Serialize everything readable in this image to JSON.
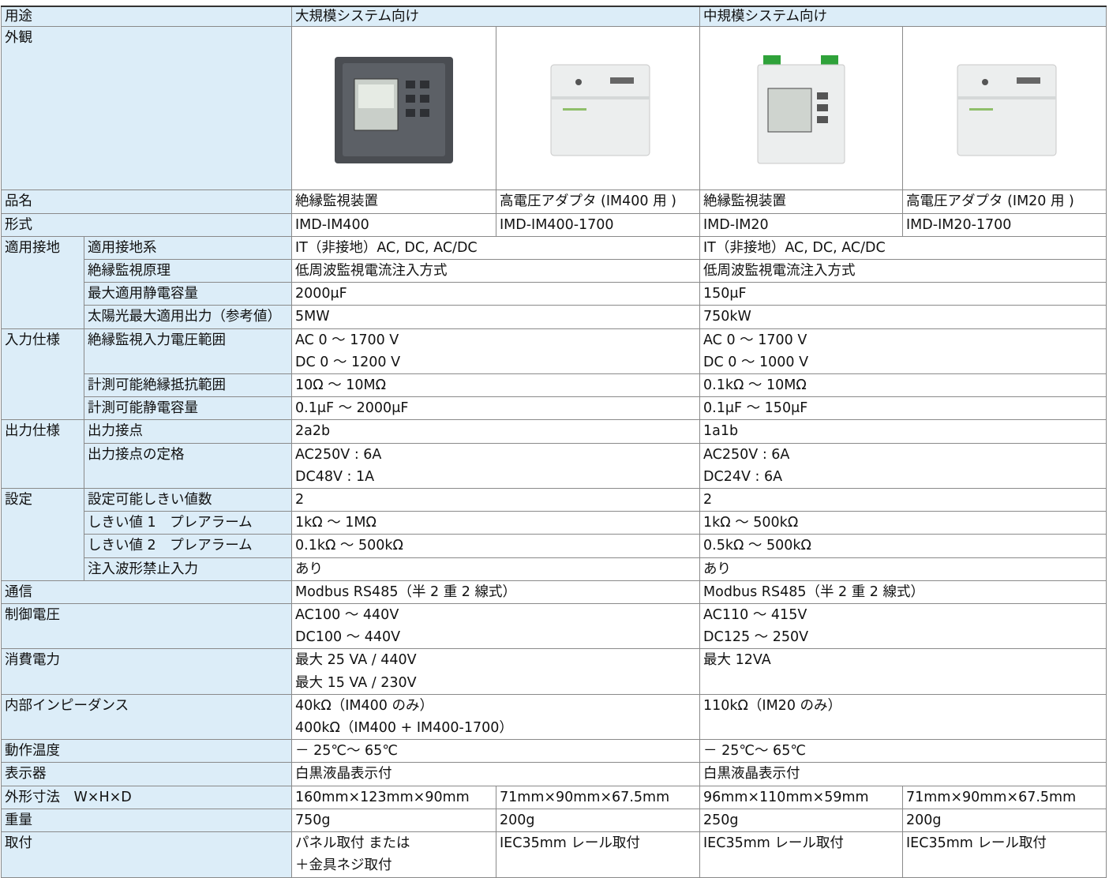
{
  "table": {
    "header": [
      "用途",
      "大規模システム向け",
      "中規模システム向け"
    ],
    "appearance_label": "外観",
    "rows": [
      [
        "品名",
        "絶縁監視装置",
        "高電圧アダプタ (IM400 用 )",
        "絶縁監視装置",
        "高電圧アダプタ (IM20 用 )"
      ],
      [
        "形式",
        "IMD-IM400",
        " IMD-IM400-1700",
        "IMD-IM20",
        "IMD-IM20-1700"
      ],
      [
        "適用接地",
        "適用接地系",
        "IT（非接地）AC, DC, AC/DC",
        "IT（非接地）AC, DC, AC/DC"
      ],
      [
        "絶縁監視原理",
        "低周波監視電流注入方式",
        "低周波監視電流注入方式"
      ],
      [
        "最大適用静電容量",
        "2000μF",
        "150μF"
      ],
      [
        "太陽光最大適用出力（参考値）",
        "5MW",
        "750kW"
      ],
      [
        "入力仕様",
        "絶縁監視入力電圧範囲",
        "AC 0 ～ 1700 V\nDC 0 ～ 1200 V",
        "AC 0 ～ 1700 V\nDC 0 ～ 1000 V"
      ],
      [
        "計測可能絶縁抵抗範囲",
        "10Ω ～ 10MΩ",
        "0.1kΩ ～ 10MΩ"
      ],
      [
        "計測可能静電容量",
        "0.1μF ～ 2000μF",
        "0.1μF ～ 150μF"
      ],
      [
        "出力仕様",
        "出力接点",
        "2a2b",
        "1a1b"
      ],
      [
        "出力接点の定格",
        "AC250V : 6A\nDC48V : 1A",
        "AC250V : 6A\nDC24V : 6A"
      ],
      [
        "設定",
        "設定可能しきい値数",
        "2",
        "2"
      ],
      [
        "しきい値 1　プレアラーム",
        "1kΩ ～ 1MΩ",
        "1kΩ ～ 500kΩ"
      ],
      [
        "しきい値 2　プレアラーム",
        "0.1kΩ ～ 500kΩ",
        "0.5kΩ ～ 500kΩ"
      ],
      [
        "注入波形禁止入力",
        "あり",
        "あり"
      ],
      [
        "通信",
        "Modbus RS485（半 2 重 2 線式）",
        "Modbus RS485（半 2 重 2 線式）"
      ],
      [
        "制御電圧",
        "AC100 ～ 440V\nDC100 ～ 440V",
        "AC110 ～ 415V\nDC125 ～ 250V"
      ],
      [
        "消費電力",
        "最大 25 VA / 440V\n最大 15 VA / 230V",
        "最大 12VA"
      ],
      [
        "内部インピーダンス",
        "40kΩ（IM400 のみ）\n400kΩ（IM400 + IM400-1700）",
        "110kΩ（IM20 のみ）"
      ],
      [
        "動作温度",
        "－ 25℃～ 65℃",
        "－ 25℃～ 65℃"
      ],
      [
        "表示器",
        "白黒液晶表示付",
        "白黒液晶表示付"
      ],
      [
        "外形寸法　W×H×D",
        "160mm×123mm×90mm",
        "71mm×90mm×67.5mm",
        "96mm×110mm×59mm",
        "71mm×90mm×67.5mm"
      ],
      [
        "重量",
        "750g",
        "200g",
        "250g",
        "200g"
      ],
      [
        "取付",
        "パネル取付 または\n＋金具ネジ取付",
        "IEC35mm レール取付",
        "IEC35mm レール取付",
        "IEC35mm レール取付"
      ]
    ]
  }
}
